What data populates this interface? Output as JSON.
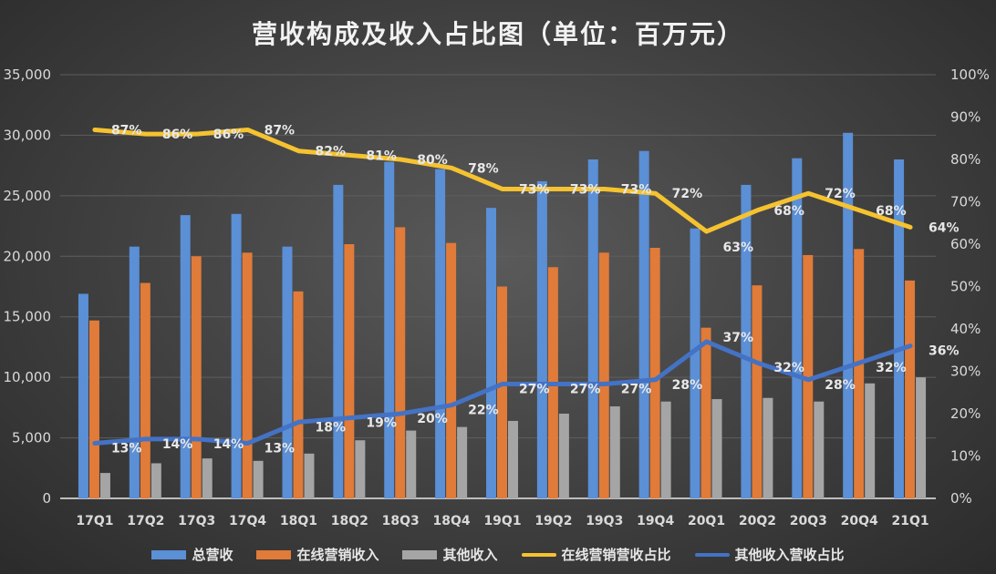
{
  "chart_data": {
    "type": "bar",
    "title": "营收构成及收入占比图（单位：百万元）",
    "categories": [
      "17Q1",
      "17Q2",
      "17Q3",
      "17Q4",
      "18Q1",
      "18Q2",
      "18Q3",
      "18Q4",
      "19Q1",
      "19Q2",
      "19Q3",
      "19Q4",
      "20Q1",
      "20Q2",
      "20Q3",
      "20Q4",
      "21Q1"
    ],
    "y_left": {
      "min": 0,
      "max": 35000,
      "step": 5000,
      "ticks": [
        "0",
        "5,000",
        "10,000",
        "15,000",
        "20,000",
        "25,000",
        "30,000",
        "35,000"
      ]
    },
    "y_right": {
      "min": 0,
      "max": 100,
      "step": 10,
      "ticks": [
        "0%",
        "10%",
        "20%",
        "30%",
        "40%",
        "50%",
        "60%",
        "70%",
        "80%",
        "90%",
        "100%"
      ]
    },
    "grid": true,
    "legend_position": "bottom",
    "bar_series": [
      {
        "name": "总营收",
        "color": "#5b8fd6",
        "values": [
          16900,
          20800,
          23400,
          23500,
          20800,
          25900,
          27800,
          27200,
          24000,
          26200,
          28000,
          28700,
          22300,
          25900,
          28100,
          30200,
          28000
        ]
      },
      {
        "name": "在线营销收入",
        "color": "#e07b39",
        "values": [
          14700,
          17800,
          20000,
          20300,
          17100,
          21000,
          22400,
          21100,
          17500,
          19100,
          20300,
          20700,
          14100,
          17600,
          20100,
          20600,
          18000
        ]
      },
      {
        "name": "其他收入",
        "color": "#a5a5a5",
        "values": [
          2100,
          2900,
          3300,
          3100,
          3700,
          4800,
          5600,
          5900,
          6400,
          7000,
          7600,
          8000,
          8200,
          8300,
          8000,
          9500,
          10000
        ]
      }
    ],
    "line_series": [
      {
        "name": "在线营销营收占比",
        "color": "#f5c230",
        "axis": "right",
        "values": [
          87,
          86,
          86,
          87,
          82,
          81,
          80,
          78,
          73,
          73,
          73,
          72,
          63,
          68,
          72,
          68,
          64
        ],
        "labels": [
          "87%",
          "86%",
          "86%",
          "87%",
          "82%",
          "81%",
          "80%",
          "78%",
          "73%",
          "73%",
          "73%",
          "72%",
          "63%",
          "68%",
          "72%",
          "68%",
          "64%"
        ]
      },
      {
        "name": "其他收入营收占比",
        "color": "#4472c4",
        "axis": "right",
        "values": [
          13,
          14,
          14,
          13,
          18,
          19,
          20,
          22,
          27,
          27,
          27,
          28,
          37,
          32,
          28,
          32,
          36
        ],
        "labels": [
          "13%",
          "14%",
          "14%",
          "13%",
          "18%",
          "19%",
          "20%",
          "22%",
          "27%",
          "27%",
          "27%",
          "28%",
          "37%",
          "32%",
          "28%",
          "32%",
          "36%"
        ]
      }
    ]
  }
}
